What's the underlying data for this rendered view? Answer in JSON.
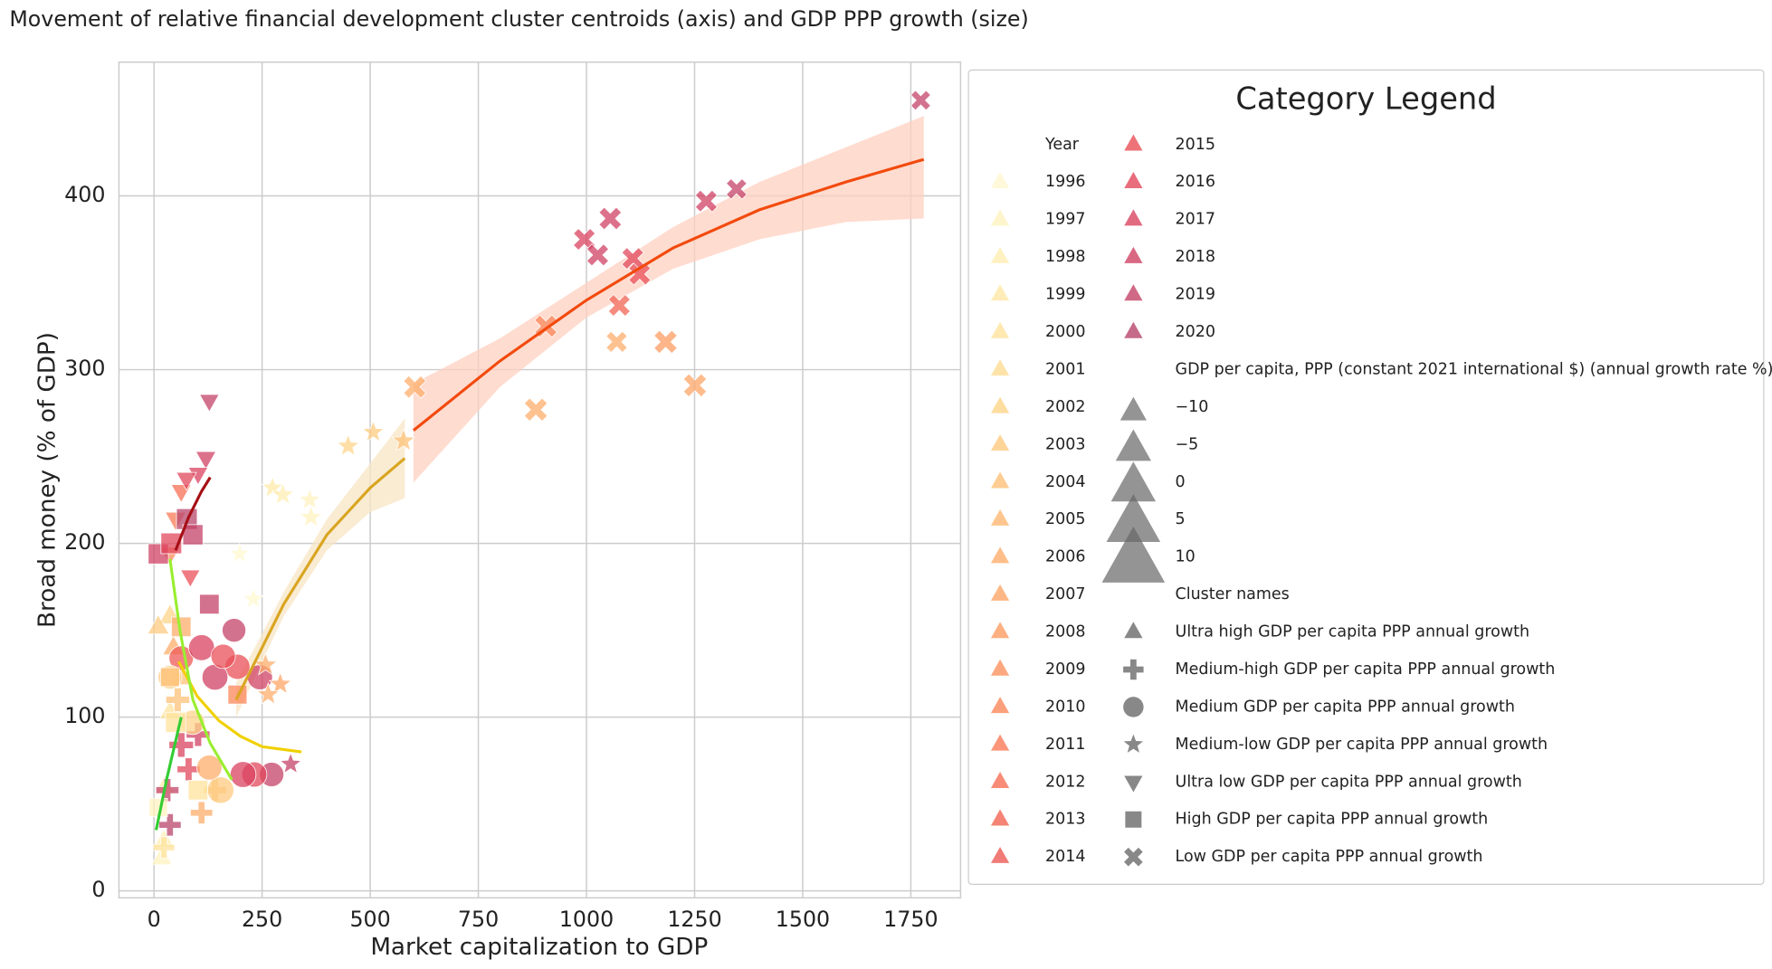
{
  "chart_data": {
    "type": "scatter",
    "title": "Movement of relative financial development cluster centroids (axis) and GDP PPP growth (size)",
    "xlabel": "Market capitalization to GDP",
    "ylabel": "Broad money (% of GDP)",
    "xlim": [
      -81,
      1865
    ],
    "ylim": [
      -4,
      477
    ],
    "xticks": [
      0,
      250,
      500,
      750,
      1000,
      1250,
      1500,
      1750
    ],
    "yticks": [
      0,
      100,
      200,
      300,
      400
    ],
    "grid": true,
    "legend": {
      "title": "Category Legend",
      "corner": "right",
      "year_title": "Year",
      "years": [
        {
          "label": "1996",
          "color": "#fff8d0"
        },
        {
          "label": "1997",
          "color": "#fff3c0"
        },
        {
          "label": "1998",
          "color": "#ffeeb3"
        },
        {
          "label": "1999",
          "color": "#ffe9a8"
        },
        {
          "label": "2000",
          "color": "#ffe39e"
        },
        {
          "label": "2001",
          "color": "#fedc94"
        },
        {
          "label": "2002",
          "color": "#fed48a"
        },
        {
          "label": "2003",
          "color": "#fecb80"
        },
        {
          "label": "2004",
          "color": "#fec178"
        },
        {
          "label": "2005",
          "color": "#feb872"
        },
        {
          "label": "2006",
          "color": "#fdae6c"
        },
        {
          "label": "2007",
          "color": "#fda567"
        },
        {
          "label": "2008",
          "color": "#fc9c62"
        },
        {
          "label": "2009",
          "color": "#fc925e"
        },
        {
          "label": "2010",
          "color": "#fb875a"
        },
        {
          "label": "2011",
          "color": "#f97b57"
        },
        {
          "label": "2012",
          "color": "#f66f55"
        },
        {
          "label": "2013",
          "color": "#f26454"
        },
        {
          "label": "2014",
          "color": "#ee5a56"
        },
        {
          "label": "2015",
          "color": "#e95058"
        },
        {
          "label": "2016",
          "color": "#e2485c"
        },
        {
          "label": "2017",
          "color": "#da4360"
        },
        {
          "label": "2018",
          "color": "#d04264"
        },
        {
          "label": "2019",
          "color": "#c44368"
        },
        {
          "label": "2020",
          "color": "#b8456b"
        }
      ],
      "size_title": "GDP per capita, PPP (constant 2021 international $) (annual growth rate %)",
      "sizes": [
        {
          "value": -10,
          "label": "−10"
        },
        {
          "value": -5,
          "label": "−5"
        },
        0,
        5,
        10
      ],
      "cluster_title": "Cluster names"
    },
    "series": [
      {
        "name": "Ultra high GDP per capita PPP annual growth",
        "marker": "triangle-up",
        "x": [
          18,
          23,
          37,
          10,
          63,
          37,
          45,
          25
        ],
        "y": [
          19,
          29,
          158,
          152,
          123,
          103,
          140,
          60
        ],
        "sizes": [
          3,
          2,
          5,
          4,
          6,
          3,
          4,
          2
        ],
        "colors": [
          "#fff3c0",
          "#ffeeb3",
          "#fed48a",
          "#fecb80",
          "#fec178",
          "#ffe39e",
          "#fdae6c",
          "#ffe9a8"
        ]
      },
      {
        "name": "Medium-high GDP per capita PPP annual growth",
        "marker": "plus",
        "x": [
          37,
          31,
          102,
          141,
          63,
          23,
          110,
          80,
          55
        ],
        "y": [
          38,
          58,
          90,
          58,
          84,
          25,
          45,
          70,
          110
        ],
        "sizes": [
          2,
          3,
          4,
          3,
          5,
          1,
          2,
          3,
          4
        ],
        "colors": [
          "#b8456b",
          "#c44368",
          "#d04264",
          "#fecb80",
          "#da4360",
          "#ffe39e",
          "#fdae6c",
          "#e2485c",
          "#fec178"
        ]
      },
      {
        "name": "Medium GDP per capita PPP annual growth",
        "marker": "circle",
        "x": [
          193,
          141,
          63,
          185,
          272,
          232,
          206,
          154,
          128,
          89,
          37,
          245,
          110,
          160
        ],
        "y": [
          129,
          123,
          134,
          150,
          67,
          67,
          67,
          58,
          71,
          97,
          123,
          123,
          140,
          135
        ],
        "sizes": [
          6,
          7,
          5,
          4,
          5,
          6,
          7,
          8,
          6,
          5,
          4,
          6,
          7,
          5
        ],
        "colors": [
          "#e95058",
          "#d04264",
          "#ee5a56",
          "#c44368",
          "#c44368",
          "#e2485c",
          "#da4360",
          "#fecb80",
          "#fdae6c",
          "#fed48a",
          "#fecb80",
          "#d04264",
          "#da4360",
          "#e95058"
        ]
      },
      {
        "name": "Medium-low GDP per capita PPP annual growth",
        "marker": "star",
        "x": [
          449,
          507,
          577,
          274,
          298,
          360,
          363,
          230,
          198,
          258,
          292,
          316,
          264
        ],
        "y": [
          256,
          264,
          259,
          232,
          228,
          225,
          215,
          168,
          194,
          130,
          119,
          73,
          113
        ],
        "sizes": [
          3,
          2,
          4,
          2,
          3,
          2,
          3,
          1,
          0,
          4,
          3,
          2,
          3
        ],
        "colors": [
          "#fed48a",
          "#fecb80",
          "#fec178",
          "#ffe9a8",
          "#ffeeb3",
          "#fff3c0",
          "#fff3c0",
          "#fff8d0",
          "#fff8d0",
          "#fdae6c",
          "#fda567",
          "#c44368",
          "#fdae6c"
        ]
      },
      {
        "name": "Ultra low GDP per capita PPP annual growth",
        "marker": "triangle-down",
        "x": [
          128,
          120,
          102,
          63,
          50,
          37,
          84,
          75
        ],
        "y": [
          282,
          249,
          240,
          230,
          214,
          194,
          181,
          237
        ],
        "sizes": [
          1,
          2,
          1,
          2,
          3,
          2,
          1,
          2
        ],
        "colors": [
          "#c44368",
          "#d04264",
          "#da4360",
          "#f66f55",
          "#f97b57",
          "#fb875a",
          "#e95058",
          "#e2485c"
        ]
      },
      {
        "name": "High GDP per capita PPP annual growth",
        "marker": "square",
        "x": [
          10,
          76,
          128,
          63,
          37,
          50,
          102,
          10,
          193,
          40,
          90
        ],
        "y": [
          194,
          214,
          165,
          152,
          123,
          97,
          58,
          48,
          113,
          200,
          205
        ],
        "sizes": [
          6,
          7,
          5,
          5,
          4,
          6,
          5,
          3,
          4,
          7,
          6
        ],
        "colors": [
          "#d04264",
          "#b8456b",
          "#c44368",
          "#fdae6c",
          "#fec178",
          "#ffe39e",
          "#ffe39e",
          "#fff3c0",
          "#fb875a",
          "#e2485c",
          "#c44368"
        ]
      },
      {
        "name": "Low GDP per capita PPP annual growth",
        "marker": "x",
        "x": [
          1773,
          1277,
          1347,
          1055,
          995,
          1026,
          1107,
          1123,
          1076,
          906,
          603,
          1070,
          1183,
          1251,
          883
        ],
        "y": [
          455,
          397,
          404,
          387,
          375,
          366,
          364,
          355,
          337,
          325,
          290,
          316,
          316,
          291,
          277
        ],
        "sizes": [
          1,
          4,
          2,
          5,
          4,
          4,
          4,
          4,
          4,
          5,
          5,
          3,
          6,
          6,
          6
        ],
        "colors": [
          "#c44368",
          "#d04264",
          "#c44368",
          "#d04264",
          "#da4360",
          "#d04264",
          "#e2485c",
          "#e95058",
          "#f26454",
          "#fb875a",
          "#fdae6c",
          "#fdae6c",
          "#fc9c62",
          "#fda567",
          "#fdae6c"
        ]
      }
    ],
    "fits": [
      {
        "color": "#f24a0d",
        "band_color": "#ffd0c0",
        "x": [
          600,
          800,
          1000,
          1200,
          1400,
          1600,
          1780
        ],
        "y": [
          265,
          305,
          340,
          370,
          392,
          408,
          421
        ],
        "lower": [
          235,
          290,
          330,
          358,
          375,
          385,
          387
        ],
        "upper": [
          292,
          318,
          350,
          382,
          408,
          428,
          446
        ]
      },
      {
        "color": "#d9a521",
        "band_color": "#f7e6c4",
        "x": [
          190,
          250,
          300,
          400,
          500,
          580
        ],
        "y": [
          110,
          140,
          165,
          205,
          232,
          249
        ],
        "lower": [
          100,
          132,
          158,
          196,
          218,
          226
        ],
        "upper": [
          120,
          148,
          172,
          214,
          246,
          272
        ]
      },
      {
        "color": "#a50f15",
        "x": [
          50,
          80,
          110,
          130
        ],
        "y": [
          196,
          215,
          230,
          238
        ]
      },
      {
        "color": "#f0d000",
        "x": [
          57,
          100,
          150,
          200,
          250,
          341
        ],
        "y": [
          132,
          112,
          98,
          89,
          83,
          80
        ]
      },
      {
        "color": "#9aee30",
        "x": [
          37,
          60,
          90,
          130,
          180
        ],
        "y": [
          191,
          150,
          110,
          85,
          64
        ]
      },
      {
        "color": "#33cc33",
        "x": [
          5,
          30,
          63
        ],
        "y": [
          35,
          65,
          100
        ]
      }
    ]
  }
}
